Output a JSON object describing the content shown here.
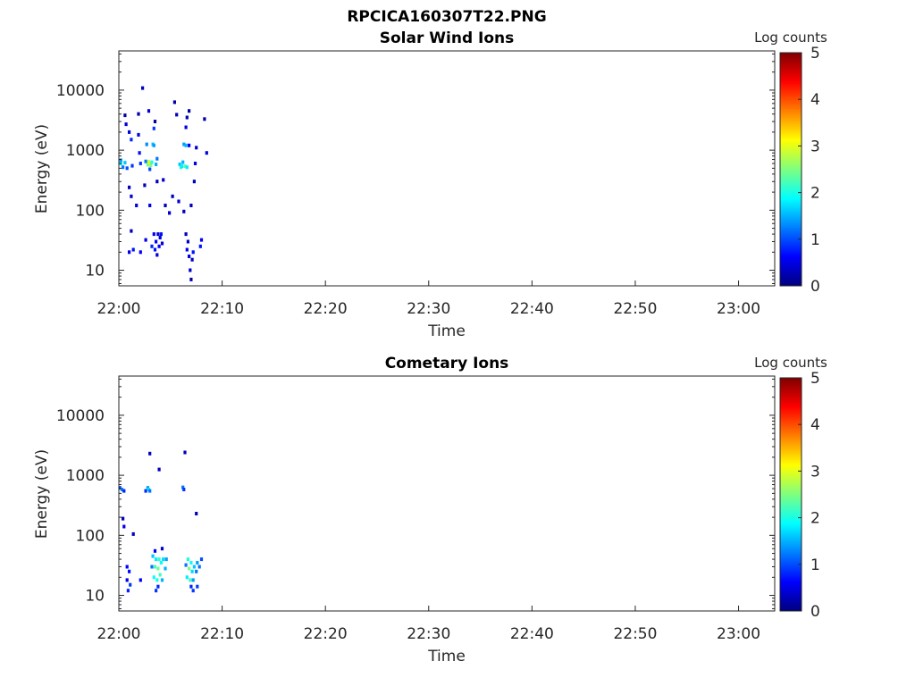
{
  "figure_title": "RPCICA160307T22.PNG",
  "colorbar_scale": [
    "#00007f",
    "#0000ff",
    "#007fff",
    "#00ffff",
    "#7fff7f",
    "#ffff00",
    "#ff7f00",
    "#ff0000",
    "#7f0000"
  ],
  "chart_data": [
    {
      "type": "heatmap",
      "title": "Solar Wind Ions",
      "xlabel": "Time",
      "ylabel": "Energy (eV)",
      "x_tick_labels": [
        "22:00",
        "22:10",
        "22:20",
        "22:30",
        "22:40",
        "22:50",
        "23:00"
      ],
      "x_tick_minutes": [
        0,
        10,
        20,
        30,
        40,
        50,
        60
      ],
      "xlim_minutes": [
        0,
        63.5
      ],
      "y_scale": "log",
      "y_tick_labels": [
        "10",
        "100",
        "1000",
        "10000"
      ],
      "y_tick_values": [
        10,
        100,
        1000,
        10000
      ],
      "ylim": [
        5.5,
        45000
      ],
      "colorbar": {
        "label": "Log counts",
        "range": [
          0,
          5
        ],
        "tick_labels": [
          "0",
          "1",
          "2",
          "3",
          "4",
          "5"
        ],
        "tick_values": [
          0,
          1,
          2,
          3,
          4,
          5
        ]
      },
      "cells": [
        [
          0.2,
          600,
          1.8
        ],
        [
          0.2,
          680,
          1.4
        ],
        [
          0.4,
          520,
          1.2
        ],
        [
          0.6,
          620,
          1.6
        ],
        [
          0.7,
          2700,
          0.4
        ],
        [
          0.8,
          500,
          1.0
        ],
        [
          0.6,
          3800,
          0.2
        ],
        [
          1.0,
          2000,
          0.5
        ],
        [
          1.2,
          1500,
          0.8
        ],
        [
          1.3,
          550,
          0.9
        ],
        [
          1.0,
          20,
          0.5
        ],
        [
          1.0,
          240,
          0.3
        ],
        [
          1.2,
          45,
          0.3
        ],
        [
          1.2,
          170,
          0.4
        ],
        [
          1.4,
          22,
          0.7
        ],
        [
          1.7,
          120,
          0.5
        ],
        [
          1.9,
          4000,
          0.2
        ],
        [
          1.9,
          1800,
          0.5
        ],
        [
          2.0,
          900,
          0.7
        ],
        [
          2.1,
          600,
          0.9
        ],
        [
          2.1,
          20,
          0.6
        ],
        [
          2.3,
          10800,
          0.3
        ],
        [
          2.5,
          260,
          0.3
        ],
        [
          2.6,
          32,
          0.5
        ],
        [
          2.6,
          650,
          1.2
        ],
        [
          2.7,
          1250,
          1.3
        ],
        [
          2.8,
          570,
          2.4
        ],
        [
          2.9,
          640,
          2.8
        ],
        [
          3.0,
          600,
          3.2
        ],
        [
          3.1,
          560,
          2.5
        ],
        [
          3.2,
          630,
          2.0
        ],
        [
          3.3,
          1250,
          1.6
        ],
        [
          3.4,
          1200,
          1.4
        ],
        [
          3.6,
          580,
          1.5
        ],
        [
          3.7,
          720,
          1.2
        ],
        [
          2.9,
          4500,
          0.4
        ],
        [
          3.0,
          120,
          0.5
        ],
        [
          3.0,
          480,
          1.0
        ],
        [
          3.5,
          3000,
          0.2
        ],
        [
          3.4,
          2300,
          0.9
        ],
        [
          3.7,
          300,
          0.3
        ],
        [
          3.2,
          25,
          0.8
        ],
        [
          3.4,
          40,
          0.6
        ],
        [
          3.5,
          22,
          0.7
        ],
        [
          3.6,
          30,
          0.6
        ],
        [
          3.7,
          18,
          0.5
        ],
        [
          3.8,
          40,
          0.4
        ],
        [
          3.9,
          25,
          0.6
        ],
        [
          4.0,
          35,
          0.5
        ],
        [
          4.1,
          40,
          0.7
        ],
        [
          4.2,
          28,
          0.4
        ],
        [
          4.3,
          320,
          0.4
        ],
        [
          4.5,
          120,
          0.3
        ],
        [
          4.9,
          90,
          0.4
        ],
        [
          5.2,
          170,
          0.3
        ],
        [
          5.4,
          6300,
          0.2
        ],
        [
          5.6,
          3900,
          0.3
        ],
        [
          5.9,
          580,
          1.6
        ],
        [
          6.0,
          520,
          2.0
        ],
        [
          6.1,
          540,
          1.8
        ],
        [
          6.2,
          630,
          1.5
        ],
        [
          6.3,
          1250,
          1.4
        ],
        [
          6.5,
          1200,
          1.5
        ],
        [
          6.4,
          540,
          2.3
        ],
        [
          6.6,
          520,
          1.8
        ],
        [
          6.5,
          2400,
          0.5
        ],
        [
          6.6,
          3500,
          0.3
        ],
        [
          6.8,
          4500,
          0.2
        ],
        [
          6.8,
          1200,
          0.6
        ],
        [
          6.5,
          40,
          0.3
        ],
        [
          6.6,
          22,
          0.6
        ],
        [
          6.7,
          30,
          0.4
        ],
        [
          6.8,
          17,
          0.5
        ],
        [
          6.9,
          10,
          0.4
        ],
        [
          7.0,
          7,
          0.2
        ],
        [
          7.1,
          15,
          0.3
        ],
        [
          7.2,
          20,
          0.7
        ],
        [
          7.3,
          300,
          0.3
        ],
        [
          7.4,
          600,
          0.5
        ],
        [
          7.5,
          1100,
          0.4
        ],
        [
          7.0,
          120,
          0.3
        ],
        [
          7.9,
          25,
          0.7
        ],
        [
          8.0,
          32,
          0.6
        ],
        [
          8.3,
          3300,
          0.2
        ],
        [
          8.5,
          900,
          0.5
        ],
        [
          5.8,
          140,
          0.4
        ],
        [
          6.3,
          95,
          0.3
        ]
      ]
    },
    {
      "type": "heatmap",
      "title": "Cometary Ions",
      "xlabel": "Time",
      "ylabel": "Energy (eV)",
      "x_tick_labels": [
        "22:00",
        "22:10",
        "22:20",
        "22:30",
        "22:40",
        "22:50",
        "23:00"
      ],
      "x_tick_minutes": [
        0,
        10,
        20,
        30,
        40,
        50,
        60
      ],
      "xlim_minutes": [
        0,
        63.5
      ],
      "y_scale": "log",
      "y_tick_labels": [
        "10",
        "100",
        "1000",
        "10000"
      ],
      "y_tick_values": [
        10,
        100,
        1000,
        10000
      ],
      "ylim": [
        5.5,
        45000
      ],
      "colorbar": {
        "label": "Log counts",
        "range": [
          0,
          5
        ],
        "tick_labels": [
          "0",
          "1",
          "2",
          "3",
          "4",
          "5"
        ],
        "tick_values": [
          0,
          1,
          2,
          3,
          4,
          5
        ]
      },
      "cells": [
        [
          0.1,
          620,
          1.0
        ],
        [
          0.3,
          580,
          1.3
        ],
        [
          0.5,
          550,
          0.8
        ],
        [
          0.4,
          190,
          0.3
        ],
        [
          0.5,
          140,
          0.5
        ],
        [
          0.8,
          30,
          0.6
        ],
        [
          0.8,
          18,
          0.5
        ],
        [
          0.9,
          12,
          0.8
        ],
        [
          1.0,
          25,
          0.7
        ],
        [
          1.1,
          15,
          0.9
        ],
        [
          1.4,
          105,
          0.3
        ],
        [
          2.1,
          18,
          0.6
        ],
        [
          2.6,
          550,
          0.8
        ],
        [
          2.8,
          620,
          1.4
        ],
        [
          2.9,
          580,
          1.8
        ],
        [
          3.0,
          550,
          1.2
        ],
        [
          3.0,
          2300,
          0.3
        ],
        [
          3.2,
          30,
          1.2
        ],
        [
          3.3,
          45,
          1.6
        ],
        [
          3.4,
          20,
          1.9
        ],
        [
          3.5,
          30,
          2.2
        ],
        [
          3.6,
          40,
          1.8
        ],
        [
          3.7,
          18,
          2.0
        ],
        [
          3.8,
          28,
          2.4
        ],
        [
          3.9,
          40,
          2.1
        ],
        [
          3.6,
          12,
          0.9
        ],
        [
          3.8,
          14,
          0.8
        ],
        [
          3.5,
          55,
          0.6
        ],
        [
          4.0,
          22,
          2.2
        ],
        [
          4.1,
          35,
          1.9
        ],
        [
          4.2,
          18,
          1.5
        ],
        [
          4.3,
          40,
          1.7
        ],
        [
          4.5,
          28,
          1.5
        ],
        [
          4.6,
          40,
          1.4
        ],
        [
          3.9,
          1250,
          0.3
        ],
        [
          4.2,
          60,
          0.4
        ],
        [
          6.2,
          630,
          1.2
        ],
        [
          6.3,
          580,
          0.9
        ],
        [
          6.4,
          2400,
          0.3
        ],
        [
          6.5,
          32,
          1.2
        ],
        [
          6.6,
          20,
          1.8
        ],
        [
          6.7,
          40,
          2.0
        ],
        [
          6.8,
          28,
          2.5
        ],
        [
          6.9,
          18,
          2.2
        ],
        [
          7.0,
          35,
          1.9
        ],
        [
          7.1,
          25,
          1.7
        ],
        [
          7.2,
          18,
          1.4
        ],
        [
          7.3,
          30,
          1.6
        ],
        [
          7.2,
          12,
          0.9
        ],
        [
          7.0,
          14,
          0.8
        ],
        [
          7.5,
          25,
          1.2
        ],
        [
          7.6,
          35,
          1.4
        ],
        [
          7.8,
          30,
          1.2
        ],
        [
          8.0,
          40,
          1.0
        ],
        [
          7.6,
          14,
          0.9
        ],
        [
          7.5,
          230,
          0.3
        ]
      ]
    }
  ]
}
